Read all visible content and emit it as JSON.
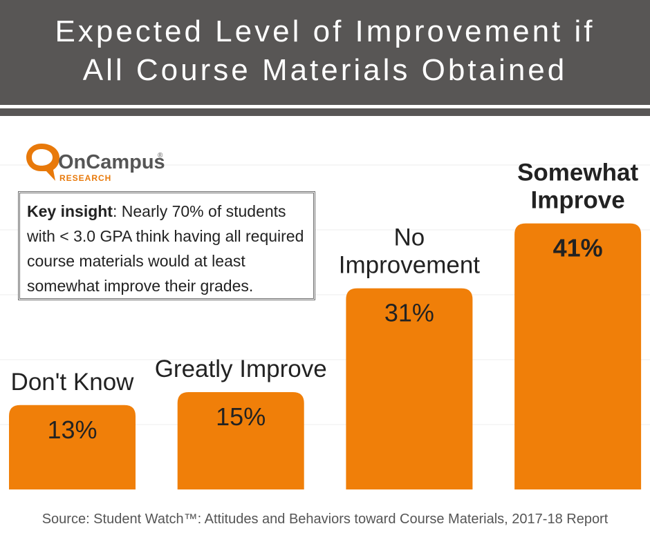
{
  "header": {
    "title_line1": "Expected Level of Improvement if",
    "title_line2": "All Course Materials Obtained"
  },
  "logo": {
    "text": "OnCampus",
    "subtext": "RESEARCH",
    "registered": "®"
  },
  "insight": {
    "label": "Key insight",
    "text": ": Nearly 70% of students with < 3.0 GPA think having all required course materials would at least somewhat improve their grades."
  },
  "chart_data": {
    "type": "bar",
    "title": "Expected Level of Improvement if All Course Materials Obtained",
    "categories": [
      "Don't Know",
      "Greatly Improve",
      "No Improvement",
      "Somewhat Improve"
    ],
    "values": [
      13,
      15,
      31,
      41
    ],
    "value_labels": [
      "13%",
      "15%",
      "31%",
      "41%"
    ],
    "label_lines": [
      [
        "Don't Know"
      ],
      [
        "Greatly Improve"
      ],
      [
        "No",
        "Improvement"
      ],
      [
        "Somewhat",
        "Improve"
      ]
    ],
    "highlight_index": 3,
    "unit": "%",
    "ylim": [
      0,
      50
    ],
    "grid": true,
    "bar_color": "#f07f09"
  },
  "source": {
    "text": "Source: Student Watch™: Attitudes and Behaviors toward Course Materials, 2017-18 Report"
  },
  "colors": {
    "header_bg": "#585655",
    "bar": "#f07f09",
    "logo_orange": "#e8790a",
    "logo_gray": "#555555"
  }
}
